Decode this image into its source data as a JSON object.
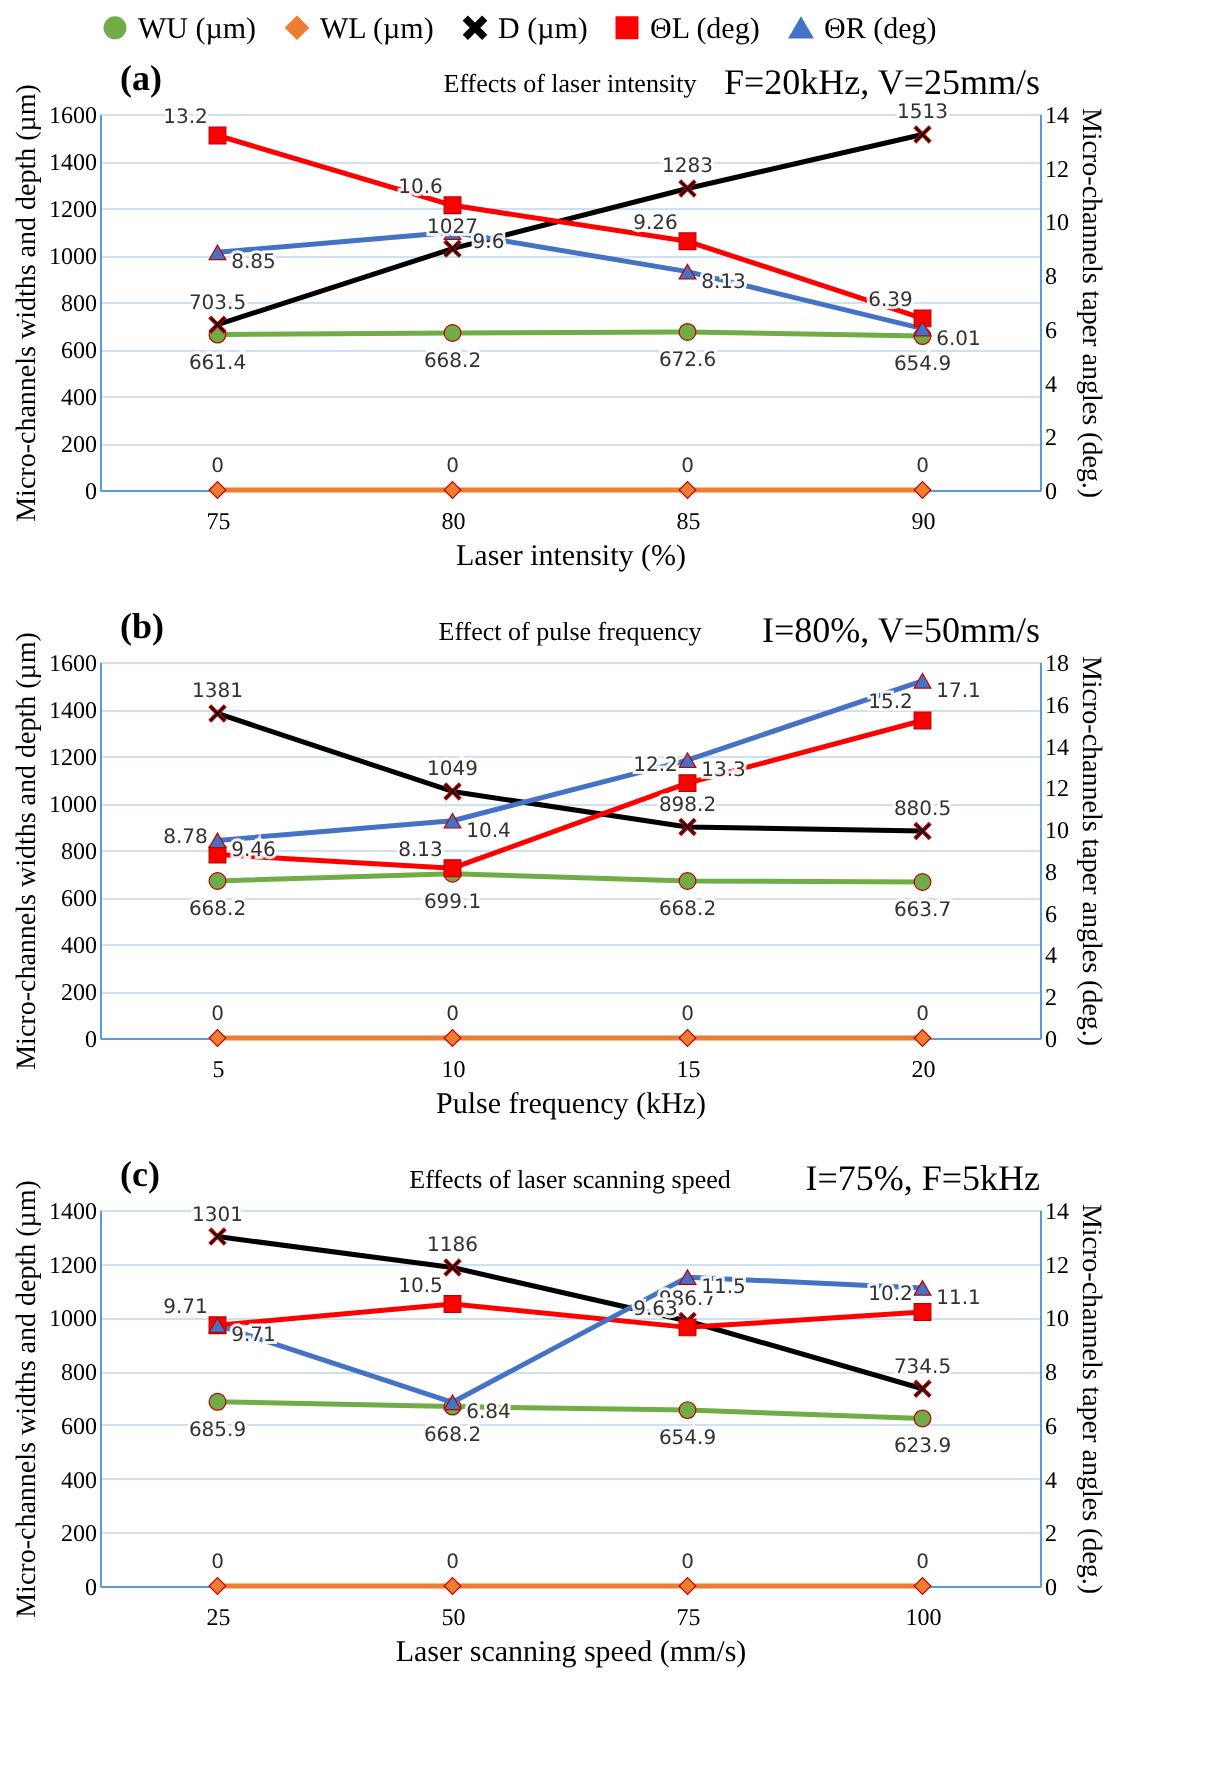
{
  "chart_data": [
    {
      "type": "line",
      "title": "Effects of laser intensity",
      "annotations": [
        "(a)",
        "F=20kHz, V=25mm/s"
      ],
      "xlabel": "Laser intensity (%)",
      "ylabel": "Micro-channels widths and depth (µm)",
      "y2label": "Micro-channels taper angles (deg.)",
      "categories": [
        "75",
        "80",
        "85",
        "90"
      ],
      "ylim": [
        0,
        1600
      ],
      "yticks": [
        0,
        200,
        400,
        600,
        800,
        1000,
        1200,
        1400,
        1600
      ],
      "y2lim": [
        0,
        14
      ],
      "y2ticks": [
        0,
        2,
        4,
        6,
        8,
        10,
        12,
        14
      ],
      "grid": "y",
      "legend": "top",
      "data_labels": true,
      "series": [
        {
          "name": "WU (µm)",
          "color": "#70ad47",
          "marker": "circle",
          "values": [
            661.4,
            668.2,
            672.6,
            654.9
          ]
        },
        {
          "name": "WL (µm)",
          "color": "#ed7d31",
          "marker": "diamond",
          "values": [
            0,
            0,
            0,
            0
          ]
        },
        {
          "name": "D (µm)",
          "color": "#000000",
          "marker": "cross",
          "values": [
            703.5,
            1027,
            1283,
            1513
          ]
        },
        {
          "name": "ΘL (deg)",
          "color": "#ff0000",
          "marker": "square",
          "axis": "y2",
          "values": [
            13.2,
            10.6,
            9.26,
            6.39
          ]
        },
        {
          "name": "ΘR (deg)",
          "color": "#4472c4",
          "marker": "triangle",
          "axis": "y2",
          "values": [
            8.85,
            9.6,
            8.13,
            6.01
          ]
        }
      ]
    },
    {
      "type": "line",
      "title": "Effect of pulse frequency",
      "annotations": [
        "(b)",
        "I=80%, V=50mm/s"
      ],
      "xlabel": "Pulse frequency (kHz)",
      "ylabel": "Micro-channels widths and depth (µm)",
      "y2label": "Micro-channels taper angles (deg.)",
      "categories": [
        "5",
        "10",
        "15",
        "20"
      ],
      "ylim": [
        0,
        1600
      ],
      "yticks": [
        0,
        200,
        400,
        600,
        800,
        1000,
        1200,
        1400,
        1600
      ],
      "y2lim": [
        0,
        18
      ],
      "y2ticks": [
        0,
        2,
        4,
        6,
        8,
        10,
        12,
        14,
        16,
        18
      ],
      "grid": "y",
      "data_labels": true,
      "series": [
        {
          "color": "#70ad47",
          "marker": "circle",
          "values": [
            668.2,
            699.1,
            668.2,
            663.7
          ]
        },
        {
          "color": "#ed7d31",
          "marker": "diamond",
          "values": [
            0,
            0,
            0,
            0
          ]
        },
        {
          "color": "#000000",
          "marker": "cross",
          "values": [
            1381,
            1049,
            898.2,
            880.5
          ]
        },
        {
          "color": "#ff0000",
          "marker": "square",
          "axis": "y2",
          "values": [
            8.78,
            8.13,
            12.2,
            15.2
          ]
        },
        {
          "color": "#4472c4",
          "marker": "triangle",
          "axis": "y2",
          "values": [
            9.46,
            10.4,
            13.3,
            17.1
          ]
        }
      ]
    },
    {
      "type": "line",
      "title": "Effects of laser scanning speed",
      "annotations": [
        "(c)",
        "I=75%, F=5kHz"
      ],
      "xlabel": "Laser scanning speed (mm/s)",
      "ylabel": "Micro-channels widths and depth (µm)",
      "y2label": "Micro-channels taper angles (deg.)",
      "categories": [
        "25",
        "50",
        "75",
        "100"
      ],
      "ylim": [
        0,
        1400
      ],
      "yticks": [
        0,
        200,
        400,
        600,
        800,
        1000,
        1200,
        1400
      ],
      "y2lim": [
        0,
        14
      ],
      "y2ticks": [
        0,
        2,
        4,
        6,
        8,
        10,
        12,
        14
      ],
      "grid": "y",
      "data_labels": true,
      "series": [
        {
          "color": "#70ad47",
          "marker": "circle",
          "values": [
            685.9,
            668.2,
            654.9,
            623.9
          ]
        },
        {
          "color": "#ed7d31",
          "marker": "diamond",
          "values": [
            0,
            0,
            0,
            0
          ]
        },
        {
          "color": "#000000",
          "marker": "cross",
          "values": [
            1301,
            1186,
            986.7,
            734.5
          ]
        },
        {
          "color": "#ff0000",
          "marker": "square",
          "axis": "y2",
          "values": [
            9.71,
            10.5,
            9.63,
            10.2
          ]
        },
        {
          "color": "#4472c4",
          "marker": "triangle",
          "axis": "y2",
          "values": [
            9.71,
            6.84,
            11.5,
            11.1
          ]
        }
      ]
    }
  ]
}
